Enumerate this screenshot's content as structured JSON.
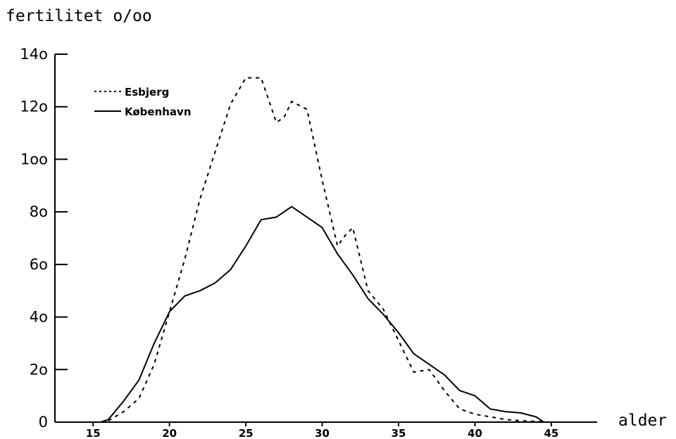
{
  "chart_data": {
    "type": "line",
    "ylabel": "fertilitet o/oo",
    "xlabel": "alder",
    "xlim": [
      12.5,
      48
    ],
    "ylim": [
      0,
      140
    ],
    "x_ticks": [
      15,
      20,
      25,
      30,
      35,
      40,
      45
    ],
    "y_ticks": [
      0,
      20,
      40,
      60,
      80,
      100,
      120,
      140
    ],
    "y_tick_labels": [
      "0",
      "2o",
      "4o",
      "6o",
      "8o",
      "1oo",
      "12o",
      "14o"
    ],
    "grid": false,
    "legend_position": "top-left",
    "series": [
      {
        "name": "Esbjerg",
        "style": "dotted",
        "color": "#000000",
        "x": [
          15.5,
          16,
          17,
          18,
          19,
          20,
          21,
          22,
          23,
          24,
          25,
          26,
          27,
          27.5,
          28,
          29,
          30,
          31,
          31.5,
          32,
          33,
          34,
          35,
          36,
          37,
          38,
          39,
          40,
          41,
          42,
          43,
          44,
          44.5
        ],
        "y": [
          0,
          0.5,
          4,
          9,
          22,
          42,
          62,
          85,
          103,
          121,
          131,
          131,
          114,
          116,
          122,
          119,
          92,
          67,
          71,
          74,
          50,
          43,
          31,
          19,
          20,
          12,
          5,
          3,
          2,
          1,
          0.5,
          0.3,
          0
        ]
      },
      {
        "name": "København",
        "style": "solid",
        "color": "#000000",
        "x": [
          15.5,
          16,
          17,
          18,
          19,
          20,
          21,
          22,
          23,
          24,
          25,
          26,
          27,
          28,
          29,
          30,
          31,
          32,
          33,
          34,
          35,
          36,
          37,
          38,
          39,
          40,
          41,
          42,
          43,
          44,
          44.5
        ],
        "y": [
          0,
          1,
          8,
          16,
          30,
          42,
          48,
          50,
          53,
          58,
          67,
          77,
          78,
          82,
          78,
          74,
          64,
          56,
          47,
          41,
          34,
          26,
          22,
          18,
          12,
          10,
          5,
          4,
          3.5,
          2,
          0
        ]
      }
    ]
  }
}
